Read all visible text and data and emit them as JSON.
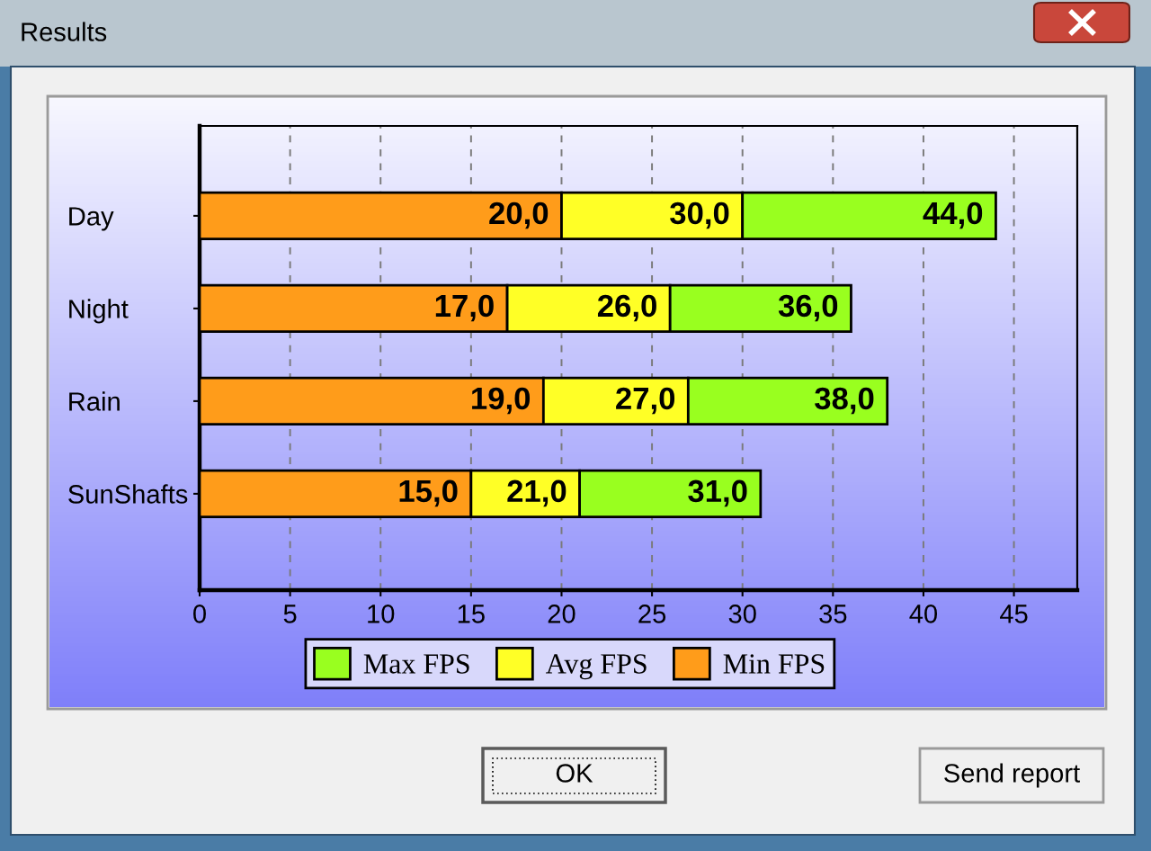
{
  "chart_data": {
    "type": "bar",
    "orientation": "horizontal",
    "stacked": true,
    "title": "Results",
    "categories": [
      "Day",
      "Night",
      "Rain",
      "SunShafts"
    ],
    "series": [
      {
        "name": "Min FPS",
        "color": "#ff9c1a",
        "values": [
          20,
          17,
          19,
          15
        ]
      },
      {
        "name": "Avg FPS",
        "color": "#ffff26",
        "values": [
          10,
          9,
          8,
          6
        ]
      },
      {
        "name": "Max FPS",
        "color": "#99ff1f",
        "values": [
          14,
          10,
          11,
          10
        ]
      }
    ],
    "xlim": [
      0,
      48.5
    ],
    "xticks": [
      0,
      5,
      10,
      15,
      20,
      25,
      30,
      35,
      40,
      45
    ],
    "grid": "x",
    "legend": "bottom",
    "annotations": [
      {
        "text": "20,0",
        "x": 20,
        "y": "Day"
      },
      {
        "text": "30,0",
        "x": 30,
        "y": "Day"
      },
      {
        "text": "44,0",
        "x": 44,
        "y": "Day"
      },
      {
        "text": "17,0",
        "x": 17,
        "y": "Night"
      },
      {
        "text": "26,0",
        "x": 26,
        "y": "Night"
      },
      {
        "text": "36,0",
        "x": 36,
        "y": "Night"
      },
      {
        "text": "19,0",
        "x": 19,
        "y": "Rain"
      },
      {
        "text": "27,0",
        "x": 27,
        "y": "Rain"
      },
      {
        "text": "38,0",
        "x": 38,
        "y": "Rain"
      },
      {
        "text": "15,0",
        "x": 15,
        "y": "SunShafts"
      },
      {
        "text": "21,0",
        "x": 21,
        "y": "SunShafts"
      },
      {
        "text": "31,0",
        "x": 31,
        "y": "SunShafts"
      },
      "OK",
      "Send report"
    ]
  }
}
